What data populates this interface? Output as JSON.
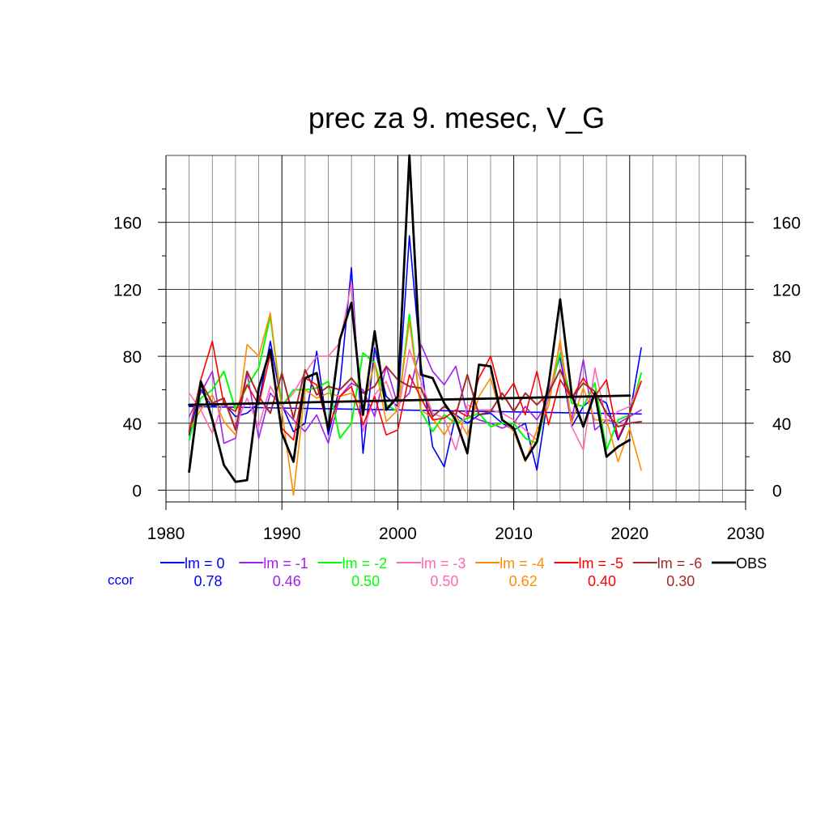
{
  "chart_data": {
    "type": "line",
    "title": "prec za 9. mesec, V_G",
    "xlabel": "",
    "ylabel": "",
    "xlim": [
      1980,
      2030
    ],
    "ylim": [
      -7,
      200
    ],
    "x_ticks": [
      1980,
      1990,
      2000,
      2010,
      2020,
      2030
    ],
    "y_ticks": [
      0,
      40,
      80,
      120,
      160
    ],
    "grid": true,
    "legend_position": "bottom",
    "ccor_label": "ccor",
    "ccor_color": "#0000ff",
    "x": [
      1982,
      1983,
      1984,
      1985,
      1986,
      1987,
      1988,
      1989,
      1990,
      1991,
      1992,
      1993,
      1994,
      1995,
      1996,
      1997,
      1998,
      1999,
      2000,
      2001,
      2002,
      2003,
      2004,
      2005,
      2006,
      2007,
      2008,
      2009,
      2010,
      2011,
      2012,
      2013,
      2014,
      2015,
      2016,
      2017,
      2018,
      2019,
      2020,
      2021
    ],
    "series": [
      {
        "name": "lm = 0",
        "ccor": "0.78",
        "color": "#0000ff",
        "width": 1.6,
        "values": [
          33,
          60,
          50,
          52,
          44,
          46,
          52,
          89,
          51,
          35,
          40,
          83,
          33,
          62,
          133,
          22,
          85,
          56,
          50,
          152,
          75,
          26,
          14,
          45,
          40,
          45,
          46,
          40,
          36,
          40,
          12,
          58,
          80,
          38,
          50,
          56,
          52,
          30,
          45,
          85
        ],
        "trend": [
          50,
          45.5
        ]
      },
      {
        "name": "lm = -1",
        "ccor": "0.46",
        "color": "#a020f0",
        "width": 1.6,
        "values": [
          44,
          58,
          71,
          28,
          31,
          70,
          31,
          58,
          50,
          42,
          35,
          45,
          28,
          56,
          64,
          60,
          44,
          74,
          51,
          58,
          87,
          71,
          63,
          74,
          45,
          42,
          40,
          37,
          40,
          50,
          42,
          54,
          82,
          42,
          78,
          36,
          42,
          40,
          44,
          48
        ]
      },
      {
        "name": "lm = -2",
        "ccor": "0.50",
        "color": "#00ff00",
        "width": 2.0,
        "values": [
          30,
          55,
          60,
          71,
          48,
          62,
          73,
          104,
          50,
          60,
          60,
          61,
          65,
          31,
          40,
          82,
          76,
          51,
          47,
          105,
          47,
          35,
          45,
          40,
          43,
          46,
          38,
          40,
          40,
          31,
          28,
          55,
          82,
          52,
          50,
          64,
          24,
          42,
          45,
          70
        ]
      },
      {
        "name": "lm = -3",
        "ccor": "0.50",
        "color": "#ff69b4",
        "width": 1.6,
        "values": [
          58,
          48,
          34,
          54,
          38,
          55,
          38,
          62,
          50,
          58,
          70,
          80,
          80,
          88,
          124,
          35,
          57,
          65,
          46,
          84,
          65,
          46,
          43,
          24,
          51,
          48,
          48,
          46,
          42,
          36,
          30,
          55,
          88,
          38,
          24,
          73,
          41,
          47,
          50,
          65
        ]
      },
      {
        "name": "lm = -4",
        "ccor": "0.62",
        "color": "#ff8c00",
        "width": 1.6,
        "values": [
          36,
          48,
          57,
          41,
          33,
          87,
          80,
          106,
          47,
          -3,
          60,
          55,
          58,
          56,
          58,
          49,
          76,
          41,
          48,
          101,
          48,
          43,
          33,
          45,
          33,
          56,
          67,
          42,
          35,
          17,
          36,
          50,
          90,
          40,
          61,
          42,
          42,
          17,
          37,
          12
        ]
      },
      {
        "name": "lm = -5",
        "ccor": "0.40",
        "color": "#ff0000",
        "width": 1.6,
        "values": [
          34,
          66,
          89,
          51,
          47,
          63,
          51,
          81,
          37,
          30,
          67,
          63,
          37,
          56,
          62,
          39,
          56,
          33,
          36,
          69,
          55,
          42,
          43,
          48,
          44,
          67,
          80,
          54,
          64,
          45,
          71,
          39,
          66,
          55,
          67,
          56,
          66,
          31,
          46,
          65
        ]
      },
      {
        "name": "lm = -6",
        "ccor": "0.30",
        "color": "#a52a2a",
        "width": 2.0,
        "values": [
          35,
          65,
          52,
          55,
          36,
          71,
          56,
          46,
          70,
          43,
          72,
          57,
          62,
          60,
          67,
          58,
          62,
          74,
          66,
          62,
          61,
          44,
          50,
          45,
          69,
          45,
          47,
          58,
          47,
          58,
          51,
          58,
          72,
          55,
          64,
          59,
          46,
          38,
          40,
          41
        ]
      },
      {
        "name": "OBS",
        "ccor": "",
        "color": "#000000",
        "width": 2.8,
        "values": [
          11,
          65,
          42,
          15,
          5,
          6,
          61,
          84,
          34,
          17,
          67,
          70,
          36,
          90,
          112,
          45,
          95,
          48,
          56,
          200,
          69,
          67,
          52,
          42,
          22,
          75,
          74,
          42,
          37,
          18,
          29,
          63,
          114,
          57,
          38,
          58,
          20,
          26,
          30,
          null
        ],
        "trend": [
          51,
          56.5
        ]
      }
    ]
  }
}
